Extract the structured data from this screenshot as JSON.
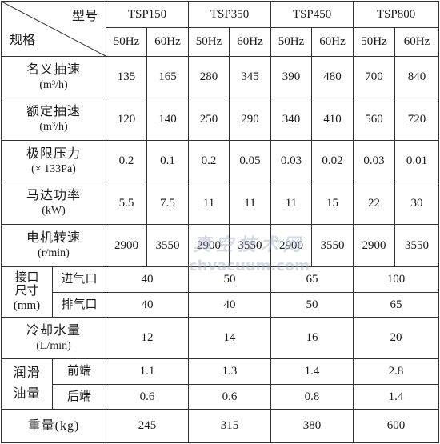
{
  "header": {
    "corner_top": "型号",
    "corner_bottom": "规格",
    "models": [
      "TSP150",
      "TSP350",
      "TSP450",
      "TSP800"
    ],
    "freq_50": "50Hz",
    "freq_60": "60Hz"
  },
  "rows": {
    "nominal_speed": {
      "label": "名义抽速",
      "unit": "(m³/h)",
      "values": [
        "135",
        "165",
        "280",
        "345",
        "390",
        "480",
        "700",
        "840"
      ]
    },
    "rated_speed": {
      "label": "额定抽速",
      "unit": "(m³/h)",
      "values": [
        "120",
        "140",
        "250",
        "290",
        "340",
        "410",
        "560",
        "720"
      ]
    },
    "ultimate_pressure": {
      "label": "极限压力",
      "unit": "(× 133Pa)",
      "values": [
        "0.2",
        "0.1",
        "0.2",
        "0.05",
        "0.03",
        "0.02",
        "0.03",
        "0.01"
      ]
    },
    "motor_power": {
      "label": "马达功率",
      "unit": "(kW)",
      "values": [
        "5.5",
        "7.5",
        "11",
        "11",
        "11",
        "15",
        "22",
        "30"
      ]
    },
    "motor_speed": {
      "label": "电机转速",
      "unit": "(r/min)",
      "values": [
        "2900",
        "3550",
        "2900",
        "3550",
        "2900",
        "3550",
        "2900",
        "3550"
      ]
    },
    "port_size": {
      "label_line1": "接口",
      "label_line2": "尺寸",
      "label_line3": "(mm)",
      "inlet_label": "进气口",
      "inlet_values": [
        "40",
        "50",
        "65",
        "100"
      ],
      "outlet_label": "排气口",
      "outlet_values": [
        "40",
        "40",
        "50",
        "65"
      ]
    },
    "cooling_water": {
      "label": "冷却水量",
      "unit": "(L/min)",
      "values": [
        "12",
        "14",
        "16",
        "20"
      ]
    },
    "lubricant": {
      "label_line1": "润滑",
      "label_line2": "油量",
      "front_label": "前端",
      "front_values": [
        "1.1",
        "1.3",
        "1.4",
        "2.8"
      ],
      "rear_label": "后端",
      "rear_values": [
        "0.6",
        "0.6",
        "0.8",
        "1.4"
      ]
    },
    "weight": {
      "label": "重量(kg)",
      "values": [
        "245",
        "315",
        "380",
        "600"
      ]
    }
  },
  "watermark": {
    "cn": "真空技术网",
    "en": "chvacuum.com"
  }
}
